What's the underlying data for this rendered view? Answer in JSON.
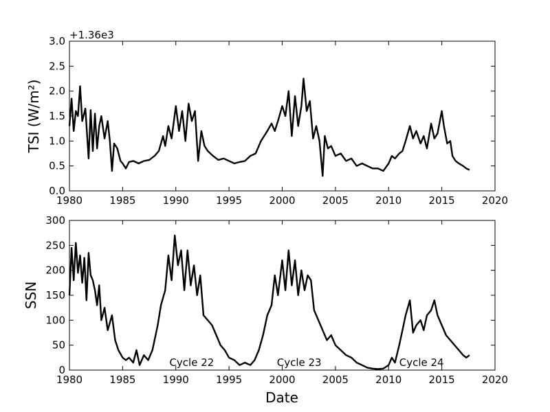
{
  "chart_data": [
    {
      "type": "line",
      "ylabel": "TSI (W/m²)",
      "xlabel": "",
      "offset_text": "+1.36e3",
      "xlim": [
        1980,
        2020
      ],
      "ylim": [
        0.0,
        3.0
      ],
      "xticks": [
        1980,
        1985,
        1990,
        1995,
        2000,
        2005,
        2010,
        2015,
        2020
      ],
      "yticks": [
        "0.0",
        "0.5",
        "1.0",
        "1.5",
        "2.0",
        "2.5",
        "3.0"
      ],
      "grid": false,
      "series": [
        {
          "color": "#000000",
          "x": [
            1980.0,
            1980.2,
            1980.4,
            1980.6,
            1980.8,
            1981.0,
            1981.2,
            1981.5,
            1981.8,
            1982.0,
            1982.2,
            1982.4,
            1982.6,
            1982.8,
            1983.0,
            1983.3,
            1983.6,
            1983.8,
            1984.0,
            1984.2,
            1984.5,
            1984.8,
            1985.0,
            1985.3,
            1985.6,
            1986.0,
            1986.5,
            1987.0,
            1987.5,
            1988.0,
            1988.4,
            1988.8,
            1989.0,
            1989.3,
            1989.6,
            1990.0,
            1990.3,
            1990.6,
            1990.9,
            1991.2,
            1991.5,
            1991.8,
            1992.1,
            1992.4,
            1992.7,
            1993.0,
            1993.5,
            1994.0,
            1994.5,
            1995.0,
            1995.5,
            1996.0,
            1996.5,
            1997.0,
            1997.5,
            1998.0,
            1998.3,
            1998.6,
            1999.0,
            1999.3,
            1999.6,
            2000.0,
            2000.3,
            2000.6,
            2000.9,
            2001.2,
            2001.5,
            2001.8,
            2002.0,
            2002.3,
            2002.6,
            2002.9,
            2003.2,
            2003.5,
            2003.8,
            2004.0,
            2004.3,
            2004.6,
            2005.0,
            2005.5,
            2006.0,
            2006.5,
            2007.0,
            2007.5,
            2008.0,
            2008.5,
            2009.0,
            2009.5,
            2010.0,
            2010.3,
            2010.6,
            2011.0,
            2011.3,
            2011.6,
            2012.0,
            2012.3,
            2012.6,
            2013.0,
            2013.3,
            2013.6,
            2014.0,
            2014.3,
            2014.6,
            2015.0,
            2015.2,
            2015.5,
            2015.8,
            2016.0,
            2016.3,
            2016.6,
            2017.0,
            2017.3,
            2017.6
          ],
          "values": [
            1.3,
            1.85,
            1.2,
            1.6,
            1.5,
            2.1,
            1.4,
            1.65,
            0.65,
            1.62,
            0.8,
            1.55,
            0.85,
            1.3,
            1.5,
            1.05,
            1.4,
            1.0,
            0.4,
            0.95,
            0.85,
            0.6,
            0.55,
            0.45,
            0.58,
            0.6,
            0.55,
            0.6,
            0.62,
            0.7,
            0.8,
            1.1,
            0.9,
            1.3,
            1.05,
            1.7,
            1.2,
            1.6,
            1.0,
            1.75,
            1.4,
            1.6,
            0.6,
            1.2,
            0.9,
            0.8,
            0.7,
            0.62,
            0.65,
            0.6,
            0.55,
            0.58,
            0.6,
            0.7,
            0.75,
            1.0,
            1.1,
            1.2,
            1.35,
            1.2,
            1.4,
            1.7,
            1.5,
            2.0,
            1.1,
            1.9,
            1.3,
            1.7,
            2.25,
            1.6,
            1.8,
            1.05,
            1.3,
            1.0,
            0.3,
            1.1,
            0.85,
            0.9,
            0.7,
            0.75,
            0.6,
            0.65,
            0.5,
            0.55,
            0.5,
            0.45,
            0.45,
            0.4,
            0.55,
            0.7,
            0.65,
            0.75,
            0.8,
            1.0,
            1.3,
            1.05,
            1.2,
            0.95,
            1.1,
            0.85,
            1.35,
            1.05,
            1.15,
            1.6,
            1.3,
            0.95,
            1.0,
            0.7,
            0.6,
            0.55,
            0.5,
            0.45,
            0.42
          ]
        }
      ]
    },
    {
      "type": "line",
      "ylabel": "SSN",
      "xlabel": "Date",
      "xlim": [
        1980,
        2020
      ],
      "ylim": [
        0,
        300
      ],
      "xticks": [
        1980,
        1985,
        1990,
        1995,
        2000,
        2005,
        2010,
        2015,
        2020
      ],
      "yticks": [
        "0",
        "50",
        "100",
        "150",
        "200",
        "250",
        "300"
      ],
      "grid": false,
      "annotations": [
        {
          "text": "Cycle 22",
          "x": 1989.4,
          "y": 8
        },
        {
          "text": "Cycle 23",
          "x": 1999.5,
          "y": 8
        },
        {
          "text": "Cycle 24",
          "x": 2011.0,
          "y": 8
        }
      ],
      "series": [
        {
          "color": "#000000",
          "x": [
            1980.0,
            1980.2,
            1980.4,
            1980.6,
            1980.8,
            1981.0,
            1981.2,
            1981.4,
            1981.6,
            1981.8,
            1982.0,
            1982.2,
            1982.4,
            1982.6,
            1982.8,
            1983.0,
            1983.3,
            1983.6,
            1984.0,
            1984.3,
            1984.6,
            1985.0,
            1985.3,
            1985.6,
            1986.0,
            1986.3,
            1986.6,
            1987.0,
            1987.4,
            1987.8,
            1988.0,
            1988.3,
            1988.6,
            1989.0,
            1989.3,
            1989.6,
            1989.9,
            1990.2,
            1990.5,
            1990.8,
            1991.1,
            1991.4,
            1991.7,
            1992.0,
            1992.3,
            1992.6,
            1993.0,
            1993.4,
            1993.8,
            1994.2,
            1994.6,
            1995.0,
            1995.5,
            1996.0,
            1996.5,
            1997.0,
            1997.4,
            1997.8,
            1998.2,
            1998.6,
            1999.0,
            1999.3,
            1999.6,
            2000.0,
            2000.3,
            2000.6,
            2000.9,
            2001.2,
            2001.5,
            2001.8,
            2002.1,
            2002.4,
            2002.7,
            2003.0,
            2003.4,
            2003.8,
            2004.2,
            2004.6,
            2005.0,
            2005.5,
            2006.0,
            2006.5,
            2007.0,
            2007.5,
            2008.0,
            2008.5,
            2009.0,
            2009.5,
            2010.0,
            2010.3,
            2010.6,
            2011.0,
            2011.3,
            2011.6,
            2012.0,
            2012.3,
            2012.6,
            2013.0,
            2013.3,
            2013.6,
            2014.0,
            2014.3,
            2014.6,
            2015.0,
            2015.4,
            2015.8,
            2016.2,
            2016.6,
            2017.0,
            2017.3,
            2017.6
          ],
          "values": [
            150,
            245,
            180,
            255,
            195,
            230,
            175,
            225,
            140,
            235,
            190,
            180,
            160,
            130,
            170,
            100,
            125,
            80,
            110,
            60,
            40,
            25,
            20,
            25,
            15,
            40,
            10,
            30,
            20,
            40,
            60,
            90,
            130,
            160,
            230,
            180,
            270,
            210,
            240,
            160,
            240,
            170,
            210,
            150,
            190,
            110,
            100,
            90,
            70,
            50,
            40,
            25,
            20,
            10,
            15,
            10,
            20,
            40,
            70,
            110,
            130,
            190,
            150,
            220,
            160,
            240,
            170,
            220,
            150,
            200,
            160,
            190,
            180,
            120,
            100,
            80,
            60,
            70,
            50,
            40,
            30,
            25,
            15,
            10,
            5,
            3,
            2,
            3,
            10,
            25,
            15,
            50,
            80,
            110,
            140,
            75,
            90,
            100,
            80,
            110,
            120,
            140,
            110,
            90,
            70,
            60,
            50,
            40,
            30,
            25,
            30
          ]
        }
      ]
    }
  ]
}
